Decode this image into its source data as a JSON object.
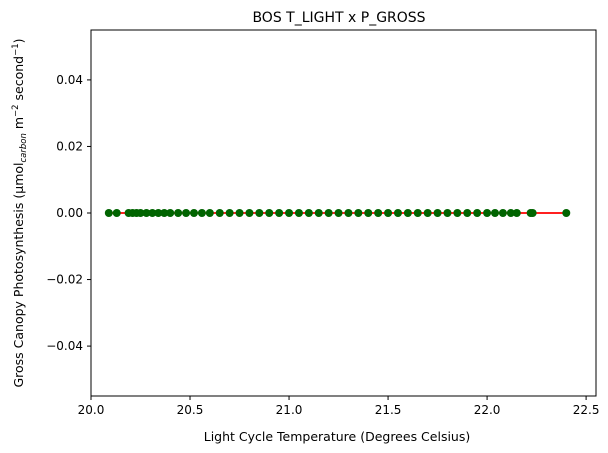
{
  "chart_data": {
    "type": "scatter",
    "title": "BOS T_LIGHT x P_GROSS",
    "xlabel": "Light Cycle Temperature (Degrees Celsius)",
    "ylabel": {
      "prefix": "Gross Canopy Photosynthesis (µmol",
      "subscript": "carbon",
      "mid": " m",
      "sup1": "−2",
      "mid2": " second",
      "sup2": "−1",
      "suffix": ")"
    },
    "xlim": [
      20.0,
      22.55
    ],
    "ylim": [
      -0.055,
      0.055
    ],
    "xticks": [
      20.0,
      20.5,
      21.0,
      21.5,
      22.0,
      22.5
    ],
    "xtick_labels": [
      "20.0",
      "20.5",
      "21.0",
      "21.5",
      "22.0",
      "22.5"
    ],
    "yticks": [
      0.04,
      0.02,
      0.0,
      -0.02,
      -0.04
    ],
    "ytick_labels": [
      "0.04",
      "0.02",
      "0.00",
      "−0.02",
      "−0.04"
    ],
    "grid": false,
    "series": [
      {
        "kind": "points",
        "color": "#006400",
        "x": [
          20.09,
          20.13,
          20.19,
          20.21,
          20.23,
          20.25,
          20.28,
          20.31,
          20.34,
          20.37,
          20.4,
          20.44,
          20.48,
          20.52,
          20.56,
          20.6,
          20.65,
          20.7,
          20.75,
          20.8,
          20.85,
          20.9,
          20.95,
          21.0,
          21.05,
          21.1,
          21.15,
          21.2,
          21.25,
          21.3,
          21.35,
          21.4,
          21.45,
          21.5,
          21.55,
          21.6,
          21.65,
          21.7,
          21.75,
          21.8,
          21.85,
          21.9,
          21.95,
          22.0,
          22.04,
          22.08,
          22.12,
          22.15,
          22.22,
          22.23,
          22.4
        ],
        "y": [
          0.0,
          0.0,
          0.0,
          0.0,
          0.0,
          0.0,
          0.0,
          0.0,
          0.0,
          0.0,
          0.0,
          0.0,
          0.0,
          0.0,
          0.0,
          0.0,
          0.0,
          0.0,
          0.0,
          0.0,
          0.0,
          0.0,
          0.0,
          0.0,
          0.0,
          0.0,
          0.0,
          0.0,
          0.0,
          0.0,
          0.0,
          0.0,
          0.0,
          0.0,
          0.0,
          0.0,
          0.0,
          0.0,
          0.0,
          0.0,
          0.0,
          0.0,
          0.0,
          0.0,
          0.0,
          0.0,
          0.0,
          0.0,
          0.0,
          0.0,
          0.0
        ]
      },
      {
        "kind": "line",
        "color": "#ff0000",
        "x": [
          20.09,
          22.4
        ],
        "y": [
          0.0,
          0.0
        ]
      }
    ]
  }
}
